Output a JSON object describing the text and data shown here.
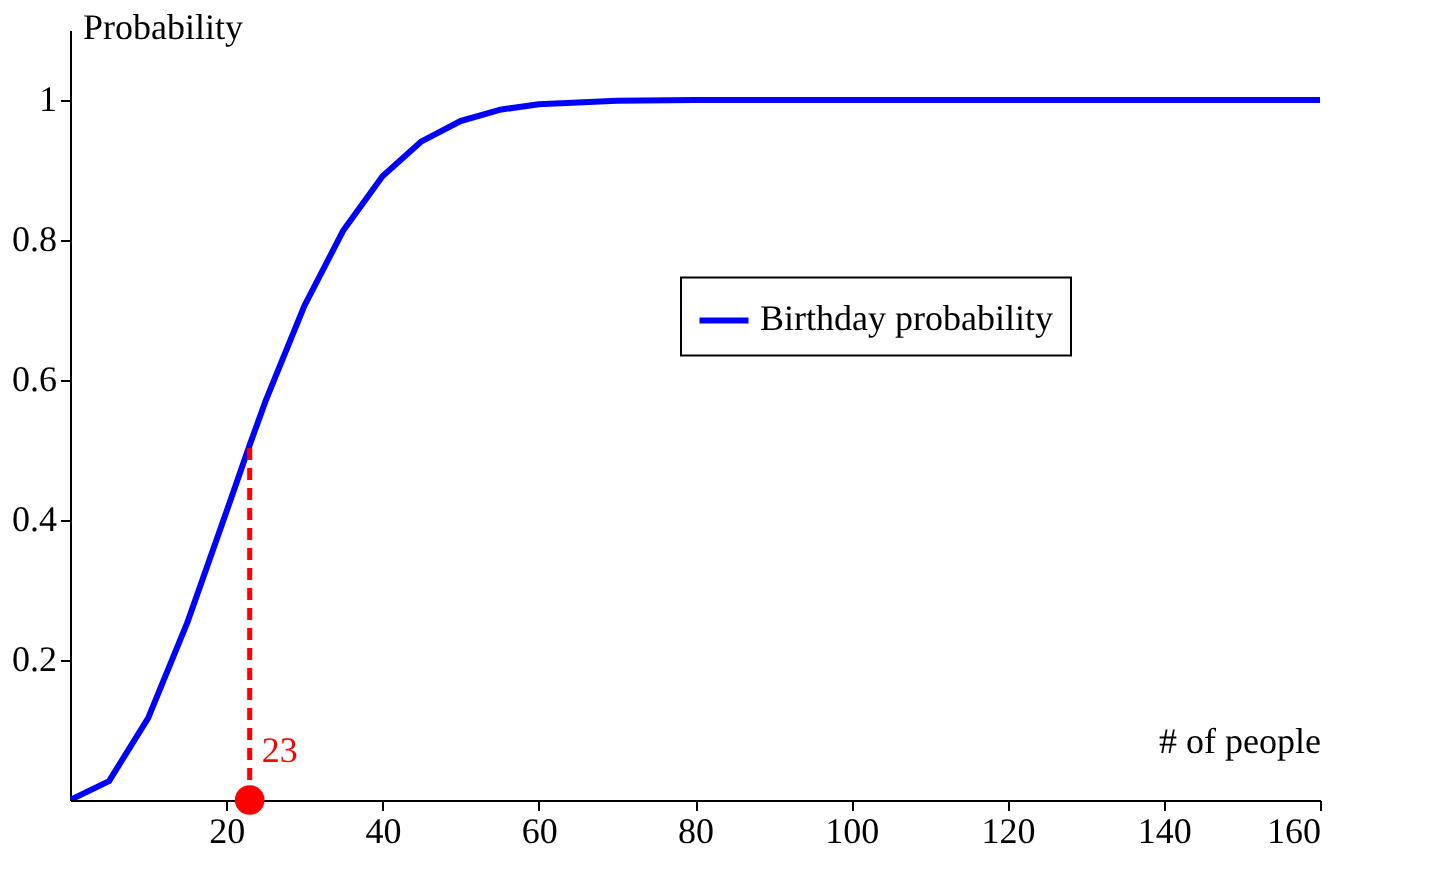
{
  "chart_data": {
    "type": "line",
    "xlabel": "# of people",
    "ylabel": "Probability",
    "xlim": [
      0,
      160
    ],
    "ylim": [
      0,
      1.1
    ],
    "xticks": [
      20,
      40,
      60,
      80,
      100,
      120,
      140,
      160
    ],
    "yticks": [
      0.2,
      0.4,
      0.6,
      0.8,
      1
    ],
    "grid": false,
    "legend": "right",
    "series": [
      {
        "name": "Birthday probability",
        "color": "#0000ff",
        "x": [
          0,
          5,
          10,
          15,
          20,
          23,
          25,
          30,
          35,
          40,
          45,
          50,
          55,
          60,
          70,
          80,
          100,
          120,
          140,
          160
        ],
        "values": [
          0,
          0.027,
          0.117,
          0.253,
          0.411,
          0.507,
          0.569,
          0.706,
          0.814,
          0.891,
          0.941,
          0.97,
          0.986,
          0.994,
          0.999,
          1,
          1,
          1,
          1,
          1
        ]
      },
      {
        "color": "#ff0000",
        "type": "line",
        "line_style": "dashed",
        "x": [
          23,
          23
        ],
        "values": [
          0,
          0.507
        ]
      },
      {
        "color": "#ff0000",
        "type": "scatter",
        "marker": "circle",
        "x": [
          23
        ],
        "values": [
          0
        ]
      }
    ],
    "annotations": [
      {
        "text": "23",
        "x": 23,
        "y": 0
      }
    ]
  }
}
